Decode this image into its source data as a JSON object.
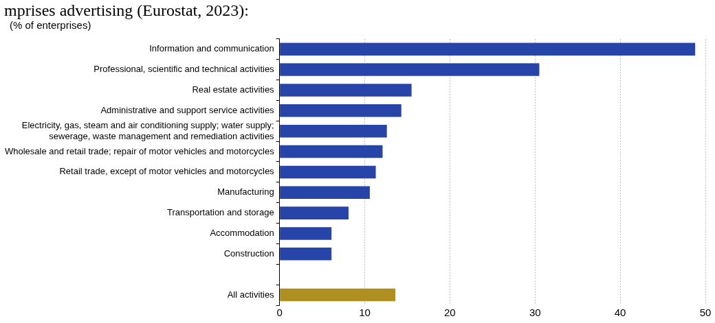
{
  "chart_data": {
    "type": "bar",
    "orientation": "horizontal",
    "title": "mprises advertising (Eurostat, 2023):",
    "subtitle": "(% of enterprises)",
    "categories": [
      "Information and communication",
      "Professional, scientific and technical activities",
      "Real estate activities",
      "Administrative and support service activities",
      "Electricity, gas, steam and air conditioning supply; water supply; sewerage, waste management and remediation activities",
      "Wholesale and retail trade; repair of motor vehicles and motorcycles",
      "Retail trade, except of motor vehicles and motorcycles",
      "Manufacturing",
      "Transportation and storage",
      "Accommodation",
      "Construction",
      null,
      "All activities"
    ],
    "values": [
      48.8,
      30.5,
      15.5,
      14.3,
      12.6,
      12.1,
      11.3,
      10.6,
      8.1,
      6.1,
      6.1,
      null,
      13.6
    ],
    "colors": [
      "#2745a8",
      "#2745a8",
      "#2745a8",
      "#2745a8",
      "#2745a8",
      "#2745a8",
      "#2745a8",
      "#2745a8",
      "#2745a8",
      "#2745a8",
      "#2745a8",
      "#2745a8",
      "#b08f21"
    ],
    "xlim": [
      0,
      50
    ],
    "xticks": [
      0,
      10,
      20,
      30,
      40,
      50
    ],
    "grid": "x",
    "legend": false
  }
}
